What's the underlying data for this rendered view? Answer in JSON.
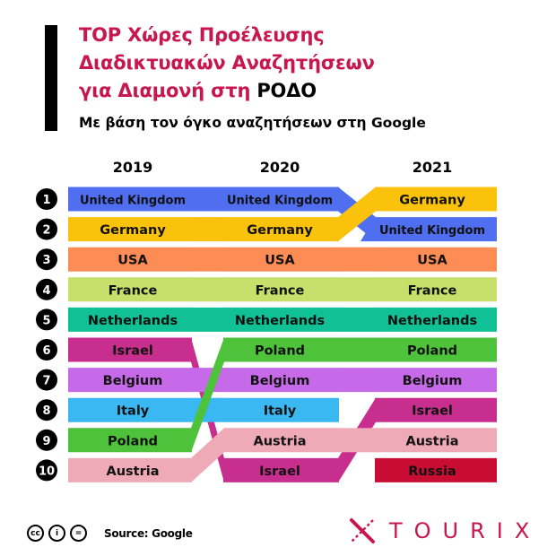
{
  "header": {
    "title_lines": [
      "TOP Χώρες Προέλευσης",
      "Διαδικτυακών Αναζητήσεων",
      "για Διαμονή στη "
    ],
    "title_highlight": "ΡΟΔΟ",
    "subtitle": "Με βάση τον όγκο αναζητήσεων στη Google"
  },
  "chart_data": {
    "type": "bump",
    "years": [
      "2019",
      "2020",
      "2021"
    ],
    "ranks": [
      "1",
      "2",
      "3",
      "4",
      "5",
      "6",
      "7",
      "8",
      "9",
      "10"
    ],
    "countries": [
      {
        "name": "United Kingdom",
        "color": "#4f6ef0",
        "ranks": [
          1,
          1,
          2
        ]
      },
      {
        "name": "Germany",
        "color": "#fac20b",
        "ranks": [
          2,
          2,
          1
        ]
      },
      {
        "name": "USA",
        "color": "#fd8c55",
        "ranks": [
          3,
          3,
          3
        ]
      },
      {
        "name": "France",
        "color": "#c7e06b",
        "ranks": [
          4,
          4,
          4
        ]
      },
      {
        "name": "Netherlands",
        "color": "#11c196",
        "ranks": [
          5,
          5,
          5
        ]
      },
      {
        "name": "Israel",
        "color": "#c82e8e",
        "ranks": [
          6,
          10,
          8
        ]
      },
      {
        "name": "Belgium",
        "color": "#c66ae9",
        "ranks": [
          7,
          7,
          7
        ]
      },
      {
        "name": "Italy",
        "color": "#39b8f2",
        "ranks": [
          8,
          8,
          null
        ]
      },
      {
        "name": "Poland",
        "color": "#4ec23b",
        "ranks": [
          9,
          6,
          6
        ]
      },
      {
        "name": "Austria",
        "color": "#eeaab7",
        "ranks": [
          10,
          9,
          9
        ]
      },
      {
        "name": "Russia",
        "color": "#c90d32",
        "ranks": [
          null,
          null,
          10
        ]
      }
    ]
  },
  "footer": {
    "license_icons": [
      "cc-icon",
      "by-icon",
      "nd-icon"
    ],
    "license_glyphs": [
      "cc",
      "i",
      "="
    ],
    "source": "Source: Google",
    "brand": "TOURIX"
  }
}
